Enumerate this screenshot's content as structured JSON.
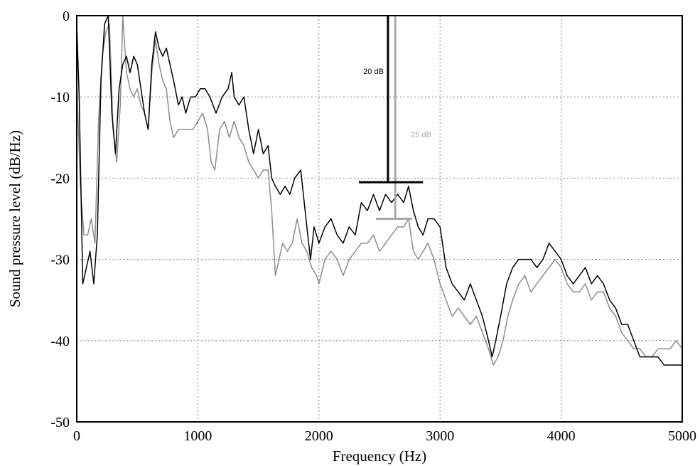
{
  "chart_data": {
    "type": "line",
    "title": "",
    "xlabel": "Frequency (Hz)",
    "ylabel": "Sound pressure level (dB/Hz)",
    "xlim": [
      0,
      5000
    ],
    "ylim": [
      -50,
      0
    ],
    "x_ticks": [
      0,
      1000,
      2000,
      3000,
      4000,
      5000
    ],
    "y_ticks": [
      0,
      -10,
      -20,
      -30,
      -40,
      -50
    ],
    "grid": true,
    "legend": "none",
    "series": [
      {
        "color": "#000000",
        "points": [
          [
            0,
            -1
          ],
          [
            20,
            -10
          ],
          [
            50,
            -33
          ],
          [
            80,
            -31
          ],
          [
            110,
            -29
          ],
          [
            140,
            -33
          ],
          [
            170,
            -27
          ],
          [
            200,
            -8
          ],
          [
            230,
            -1
          ],
          [
            260,
            0
          ],
          [
            290,
            -12
          ],
          [
            320,
            -17
          ],
          [
            350,
            -9
          ],
          [
            380,
            -6
          ],
          [
            410,
            -5
          ],
          [
            440,
            -7
          ],
          [
            470,
            -5
          ],
          [
            500,
            -6
          ],
          [
            530,
            -9
          ],
          [
            560,
            -12
          ],
          [
            590,
            -14
          ],
          [
            620,
            -6
          ],
          [
            650,
            -2
          ],
          [
            680,
            -4
          ],
          [
            710,
            -5
          ],
          [
            740,
            -4
          ],
          [
            770,
            -6
          ],
          [
            800,
            -8
          ],
          [
            840,
            -11
          ],
          [
            870,
            -10
          ],
          [
            900,
            -12
          ],
          [
            940,
            -10
          ],
          [
            980,
            -10
          ],
          [
            1020,
            -9
          ],
          [
            1060,
            -9
          ],
          [
            1100,
            -10
          ],
          [
            1150,
            -12
          ],
          [
            1200,
            -10
          ],
          [
            1250,
            -9
          ],
          [
            1280,
            -7
          ],
          [
            1300,
            -10
          ],
          [
            1340,
            -11
          ],
          [
            1380,
            -10
          ],
          [
            1420,
            -14
          ],
          [
            1460,
            -17
          ],
          [
            1500,
            -14
          ],
          [
            1540,
            -17
          ],
          [
            1580,
            -16
          ],
          [
            1610,
            -20
          ],
          [
            1640,
            -21
          ],
          [
            1680,
            -22
          ],
          [
            1720,
            -21
          ],
          [
            1760,
            -22
          ],
          [
            1800,
            -20
          ],
          [
            1850,
            -19
          ],
          [
            1900,
            -26
          ],
          [
            1930,
            -30
          ],
          [
            1960,
            -26
          ],
          [
            2000,
            -28
          ],
          [
            2050,
            -26
          ],
          [
            2100,
            -25
          ],
          [
            2150,
            -27
          ],
          [
            2200,
            -28
          ],
          [
            2250,
            -26
          ],
          [
            2300,
            -27
          ],
          [
            2350,
            -23
          ],
          [
            2400,
            -24
          ],
          [
            2450,
            -22
          ],
          [
            2500,
            -24
          ],
          [
            2550,
            -22
          ],
          [
            2600,
            -23
          ],
          [
            2650,
            -22
          ],
          [
            2700,
            -23
          ],
          [
            2740,
            -21
          ],
          [
            2780,
            -24
          ],
          [
            2820,
            -26
          ],
          [
            2860,
            -27
          ],
          [
            2900,
            -25
          ],
          [
            2950,
            -25
          ],
          [
            3000,
            -26
          ],
          [
            3050,
            -31
          ],
          [
            3100,
            -33
          ],
          [
            3150,
            -34
          ],
          [
            3200,
            -35
          ],
          [
            3250,
            -33
          ],
          [
            3300,
            -35
          ],
          [
            3350,
            -37
          ],
          [
            3400,
            -40
          ],
          [
            3430,
            -42
          ],
          [
            3460,
            -40
          ],
          [
            3500,
            -37
          ],
          [
            3550,
            -33
          ],
          [
            3600,
            -31
          ],
          [
            3650,
            -30
          ],
          [
            3700,
            -30
          ],
          [
            3750,
            -30
          ],
          [
            3800,
            -31
          ],
          [
            3850,
            -30
          ],
          [
            3900,
            -28
          ],
          [
            3950,
            -29
          ],
          [
            4000,
            -30
          ],
          [
            4050,
            -32
          ],
          [
            4100,
            -33
          ],
          [
            4150,
            -32
          ],
          [
            4200,
            -31
          ],
          [
            4250,
            -33
          ],
          [
            4300,
            -32
          ],
          [
            4350,
            -33
          ],
          [
            4400,
            -35
          ],
          [
            4450,
            -36
          ],
          [
            4500,
            -38
          ],
          [
            4550,
            -38
          ],
          [
            4600,
            -40
          ],
          [
            4650,
            -42
          ],
          [
            4700,
            -42
          ],
          [
            4750,
            -42
          ],
          [
            4800,
            -42
          ],
          [
            4850,
            -43
          ],
          [
            4900,
            -43
          ],
          [
            4950,
            -43
          ],
          [
            5000,
            -43
          ]
        ]
      },
      {
        "color": "#8c8c8c",
        "points": [
          [
            0,
            -8
          ],
          [
            30,
            -21
          ],
          [
            60,
            -27
          ],
          [
            90,
            -27
          ],
          [
            120,
            -25
          ],
          [
            150,
            -28
          ],
          [
            180,
            -13
          ],
          [
            210,
            -5
          ],
          [
            240,
            -2
          ],
          [
            270,
            -1
          ],
          [
            300,
            -14
          ],
          [
            330,
            -18
          ],
          [
            360,
            -11
          ],
          [
            380,
            0
          ],
          [
            410,
            -7
          ],
          [
            440,
            -9
          ],
          [
            470,
            -10
          ],
          [
            500,
            -9
          ],
          [
            530,
            -11
          ],
          [
            560,
            -12
          ],
          [
            590,
            -14
          ],
          [
            620,
            -7
          ],
          [
            650,
            -3
          ],
          [
            680,
            -6
          ],
          [
            710,
            -8
          ],
          [
            740,
            -9
          ],
          [
            770,
            -13
          ],
          [
            800,
            -15
          ],
          [
            840,
            -14
          ],
          [
            880,
            -14
          ],
          [
            920,
            -14
          ],
          [
            960,
            -14
          ],
          [
            1000,
            -13
          ],
          [
            1040,
            -12
          ],
          [
            1080,
            -14
          ],
          [
            1110,
            -18
          ],
          [
            1140,
            -19
          ],
          [
            1180,
            -14
          ],
          [
            1220,
            -13
          ],
          [
            1260,
            -15
          ],
          [
            1300,
            -13
          ],
          [
            1340,
            -15
          ],
          [
            1380,
            -16
          ],
          [
            1420,
            -18
          ],
          [
            1460,
            -19
          ],
          [
            1500,
            -20
          ],
          [
            1540,
            -19
          ],
          [
            1580,
            -19
          ],
          [
            1610,
            -24
          ],
          [
            1640,
            -32
          ],
          [
            1670,
            -30
          ],
          [
            1700,
            -28
          ],
          [
            1740,
            -29
          ],
          [
            1780,
            -28
          ],
          [
            1820,
            -25
          ],
          [
            1860,
            -28
          ],
          [
            1900,
            -29
          ],
          [
            1940,
            -31
          ],
          [
            1980,
            -32
          ],
          [
            2000,
            -33
          ],
          [
            2050,
            -30
          ],
          [
            2100,
            -29
          ],
          [
            2150,
            -30
          ],
          [
            2200,
            -32
          ],
          [
            2250,
            -30
          ],
          [
            2300,
            -29
          ],
          [
            2350,
            -28
          ],
          [
            2400,
            -28
          ],
          [
            2450,
            -27
          ],
          [
            2500,
            -29
          ],
          [
            2550,
            -28
          ],
          [
            2600,
            -27
          ],
          [
            2650,
            -26
          ],
          [
            2700,
            -26
          ],
          [
            2740,
            -25
          ],
          [
            2780,
            -29
          ],
          [
            2820,
            -30
          ],
          [
            2860,
            -29
          ],
          [
            2900,
            -28
          ],
          [
            2950,
            -30
          ],
          [
            3000,
            -33
          ],
          [
            3050,
            -35
          ],
          [
            3100,
            -37
          ],
          [
            3150,
            -36
          ],
          [
            3200,
            -37
          ],
          [
            3250,
            -38
          ],
          [
            3300,
            -37
          ],
          [
            3350,
            -39
          ],
          [
            3400,
            -41
          ],
          [
            3440,
            -43
          ],
          [
            3480,
            -42
          ],
          [
            3520,
            -40
          ],
          [
            3560,
            -37
          ],
          [
            3600,
            -35
          ],
          [
            3650,
            -33
          ],
          [
            3700,
            -32
          ],
          [
            3750,
            -34
          ],
          [
            3800,
            -33
          ],
          [
            3850,
            -32
          ],
          [
            3900,
            -31
          ],
          [
            3950,
            -30
          ],
          [
            4000,
            -31
          ],
          [
            4050,
            -33
          ],
          [
            4100,
            -34
          ],
          [
            4150,
            -34
          ],
          [
            4200,
            -33
          ],
          [
            4250,
            -35
          ],
          [
            4300,
            -34
          ],
          [
            4350,
            -34
          ],
          [
            4400,
            -36
          ],
          [
            4450,
            -37
          ],
          [
            4500,
            -39
          ],
          [
            4550,
            -40
          ],
          [
            4600,
            -41
          ],
          [
            4650,
            -41
          ],
          [
            4700,
            -42
          ],
          [
            4750,
            -42
          ],
          [
            4800,
            -41
          ],
          [
            4850,
            -41
          ],
          [
            4900,
            -41
          ],
          [
            4950,
            -40
          ],
          [
            5000,
            -41
          ]
        ]
      }
    ],
    "annotations": [
      {
        "label": "20 dB",
        "color": "#000000",
        "x": 2570,
        "y_top": 0,
        "y_bottom": -20.5,
        "bar_from_x": 2330,
        "bar_to_x": 2860
      },
      {
        "label": "25 dB",
        "color": "#aaaaaa",
        "x": 2630,
        "y_top": 0,
        "y_bottom": -25,
        "bar_from_x": 2470,
        "bar_to_x": 2770
      }
    ]
  }
}
